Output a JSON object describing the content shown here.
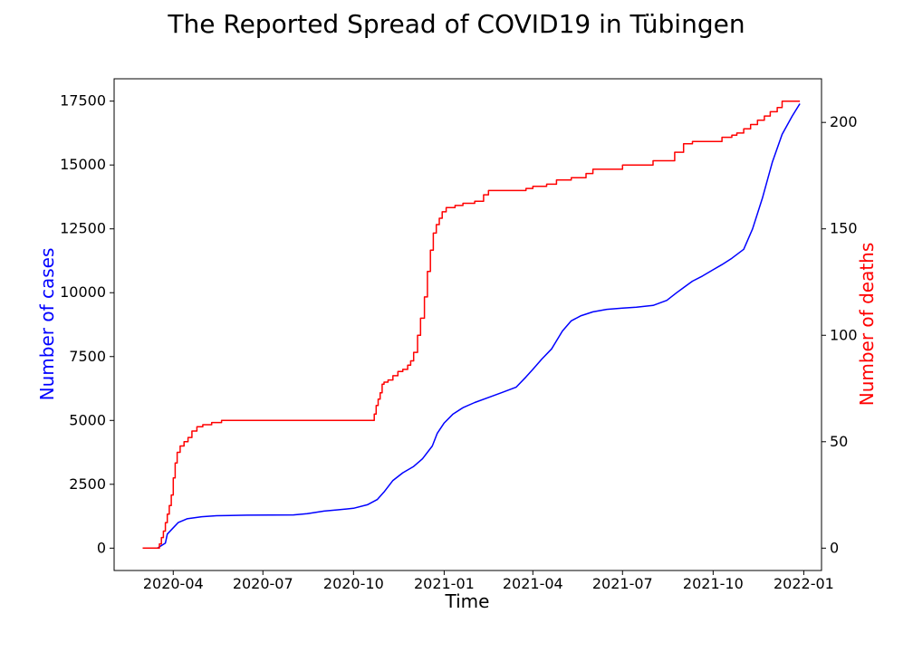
{
  "chart_data": {
    "type": "line",
    "title": "The Reported Spread of COVID19 in Tübingen",
    "xlabel": "Time",
    "ylabel_left": "Number of cases",
    "ylabel_right": "Number of deaths",
    "xlim": [
      "2020-02-01",
      "2022-01-19"
    ],
    "ylim_left": [
      -875,
      18375
    ],
    "ylim_right": [
      -10.5,
      220.5
    ],
    "x_ticks": [
      "2020-04",
      "2020-07",
      "2020-10",
      "2021-01",
      "2021-04",
      "2021-07",
      "2021-10",
      "2022-01"
    ],
    "y_ticks_left": [
      0,
      2500,
      5000,
      7500,
      10000,
      12500,
      15000,
      17500
    ],
    "y_ticks_right": [
      0,
      50,
      100,
      150,
      200
    ],
    "grid": false,
    "colors": {
      "cases": "#0000ff",
      "deaths": "#ff0000",
      "left_label": "#0000ff",
      "right_label": "#ff0000"
    },
    "series": [
      {
        "axis": "left",
        "x": [
          "2020-03-01",
          "2020-03-16",
          "2020-03-20",
          "2020-03-24",
          "2020-03-26",
          "2020-04-01",
          "2020-04-06",
          "2020-04-15",
          "2020-04-30",
          "2020-05-15",
          "2020-06-15",
          "2020-08-01",
          "2020-08-15",
          "2020-09-01",
          "2020-09-15",
          "2020-10-01",
          "2020-10-15",
          "2020-10-25",
          "2020-11-01",
          "2020-11-10",
          "2020-11-20",
          "2020-12-01",
          "2020-12-10",
          "2020-12-20",
          "2020-12-25",
          "2021-01-01",
          "2021-01-10",
          "2021-01-20",
          "2021-02-01",
          "2021-02-15",
          "2021-03-01",
          "2021-03-15",
          "2021-03-25",
          "2021-04-01",
          "2021-04-10",
          "2021-04-20",
          "2021-05-01",
          "2021-05-10",
          "2021-05-20",
          "2021-06-01",
          "2021-06-15",
          "2021-07-01",
          "2021-07-15",
          "2021-08-01",
          "2021-08-15",
          "2021-08-25",
          "2021-09-01",
          "2021-09-10",
          "2021-09-20",
          "2021-10-01",
          "2021-10-10",
          "2021-10-20",
          "2021-11-01",
          "2021-11-10",
          "2021-11-20",
          "2021-11-30",
          "2021-12-10",
          "2021-12-20",
          "2021-12-28"
        ],
        "values": [
          0,
          0,
          100,
          200,
          550,
          800,
          1000,
          1150,
          1230,
          1270,
          1290,
          1300,
          1350,
          1450,
          1500,
          1560,
          1700,
          1900,
          2200,
          2650,
          2950,
          3200,
          3500,
          4000,
          4500,
          4900,
          5250,
          5500,
          5700,
          5900,
          6100,
          6300,
          6700,
          7000,
          7400,
          7800,
          8500,
          8900,
          9100,
          9250,
          9350,
          9400,
          9430,
          9500,
          9700,
          10000,
          10200,
          10450,
          10650,
          10900,
          11100,
          11350,
          11700,
          12500,
          13700,
          15100,
          16200,
          16900,
          17400
        ]
      },
      {
        "axis": "right",
        "x": [
          "2020-03-01",
          "2020-03-15",
          "2020-03-18",
          "2020-03-20",
          "2020-03-22",
          "2020-03-24",
          "2020-03-26",
          "2020-03-28",
          "2020-03-30",
          "2020-04-01",
          "2020-04-03",
          "2020-04-05",
          "2020-04-08",
          "2020-04-12",
          "2020-04-16",
          "2020-04-20",
          "2020-04-25",
          "2020-05-01",
          "2020-05-10",
          "2020-05-20",
          "2020-07-01",
          "2020-09-01",
          "2020-10-01",
          "2020-10-20",
          "2020-10-22",
          "2020-10-24",
          "2020-10-26",
          "2020-10-28",
          "2020-10-30",
          "2020-11-01",
          "2020-11-05",
          "2020-11-10",
          "2020-11-15",
          "2020-11-20",
          "2020-11-25",
          "2020-11-28",
          "2020-12-01",
          "2020-12-05",
          "2020-12-08",
          "2020-12-12",
          "2020-12-15",
          "2020-12-18",
          "2020-12-21",
          "2020-12-24",
          "2020-12-27",
          "2020-12-30",
          "2021-01-03",
          "2021-01-07",
          "2021-01-12",
          "2021-01-20",
          "2021-02-01",
          "2021-02-10",
          "2021-02-15",
          "2021-03-01",
          "2021-03-20",
          "2021-03-25",
          "2021-04-01",
          "2021-04-15",
          "2021-04-25",
          "2021-05-10",
          "2021-05-25",
          "2021-06-01",
          "2021-07-01",
          "2021-08-01",
          "2021-08-20",
          "2021-08-23",
          "2021-09-01",
          "2021-09-10",
          "2021-10-01",
          "2021-10-10",
          "2021-10-20",
          "2021-10-25",
          "2021-11-01",
          "2021-11-08",
          "2021-11-15",
          "2021-11-22",
          "2021-11-28",
          "2021-12-05",
          "2021-12-10",
          "2021-12-28"
        ],
        "values": [
          0,
          0,
          2,
          5,
          8,
          12,
          16,
          20,
          25,
          33,
          40,
          45,
          48,
          50,
          52,
          55,
          57,
          58,
          59,
          60,
          60,
          60,
          60,
          60,
          63,
          67,
          70,
          73,
          77,
          78,
          79,
          81,
          83,
          84,
          86,
          88,
          92,
          100,
          108,
          118,
          130,
          140,
          148,
          152,
          155,
          158,
          160,
          160,
          161,
          162,
          163,
          166,
          168,
          168,
          168,
          169,
          170,
          171,
          173,
          174,
          176,
          178,
          180,
          182,
          182,
          186,
          190,
          191,
          191,
          193,
          194,
          195,
          197,
          199,
          201,
          203,
          205,
          207,
          210,
          210
        ]
      }
    ]
  }
}
